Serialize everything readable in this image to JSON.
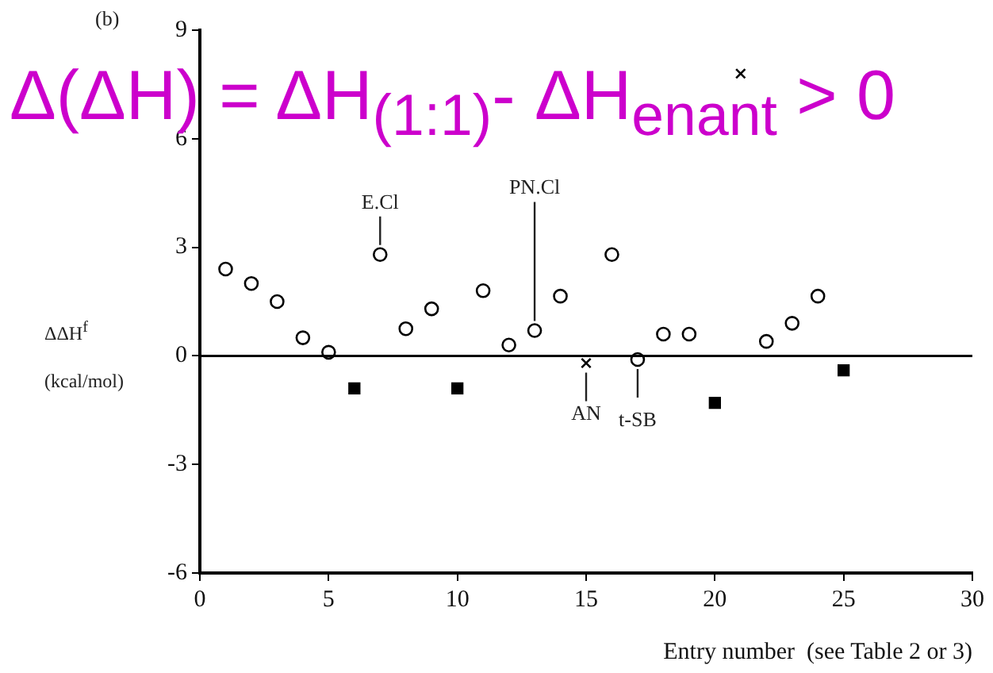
{
  "chart_data": {
    "type": "scatter",
    "title": "Δ(ΔH) = ΔH$_{(1:1)}$- ΔH$_{enant}$ > 0",
    "xlabel": "Entry number  (see Table 2 or 3)",
    "ylabel": "ΔΔH$^{f}$ (kcal/mol)",
    "xlim": [
      0,
      30
    ],
    "xticks": [
      0,
      5,
      10,
      15,
      20,
      25,
      30
    ],
    "ylim": [
      -6,
      9
    ],
    "yticks": [
      -6,
      -3,
      0,
      3,
      6,
      9
    ],
    "grid": false,
    "legend": false,
    "series": [
      {
        "color": "#000000",
        "marker": "circle",
        "x": [
          1,
          2,
          3,
          4,
          5,
          7,
          8,
          9,
          11,
          12,
          13,
          14,
          16,
          17,
          18,
          19,
          22,
          23,
          24
        ],
        "values": [
          2.4,
          2.0,
          1.5,
          0.5,
          0.1,
          2.8,
          0.75,
          1.3,
          1.8,
          0.3,
          0.7,
          1.65,
          2.8,
          -0.1,
          0.6,
          0.6,
          0.4,
          0.9,
          1.65
        ]
      },
      {
        "color": "#000000",
        "marker": "square",
        "x": [
          6,
          10,
          20,
          25
        ],
        "values": [
          -0.9,
          -0.9,
          -1.3,
          -0.4
        ]
      },
      {
        "color": "#000000",
        "marker": "cross",
        "x": [
          15,
          21
        ],
        "values": [
          -0.2,
          7.8
        ]
      }
    ],
    "ref_lines": [
      {
        "axis": "y",
        "value": 0,
        "color": "#000000"
      }
    ],
    "annotations": [
      "(b)",
      {
        "text": "E.Cl",
        "x": 7,
        "y": 2.8
      },
      {
        "text": "PN.Cl",
        "x": 13,
        "y": 0.7
      },
      {
        "text": "AN",
        "x": 15,
        "y": -0.2
      },
      {
        "text": "t-SB",
        "x": 17,
        "y": -0.1
      }
    ]
  }
}
